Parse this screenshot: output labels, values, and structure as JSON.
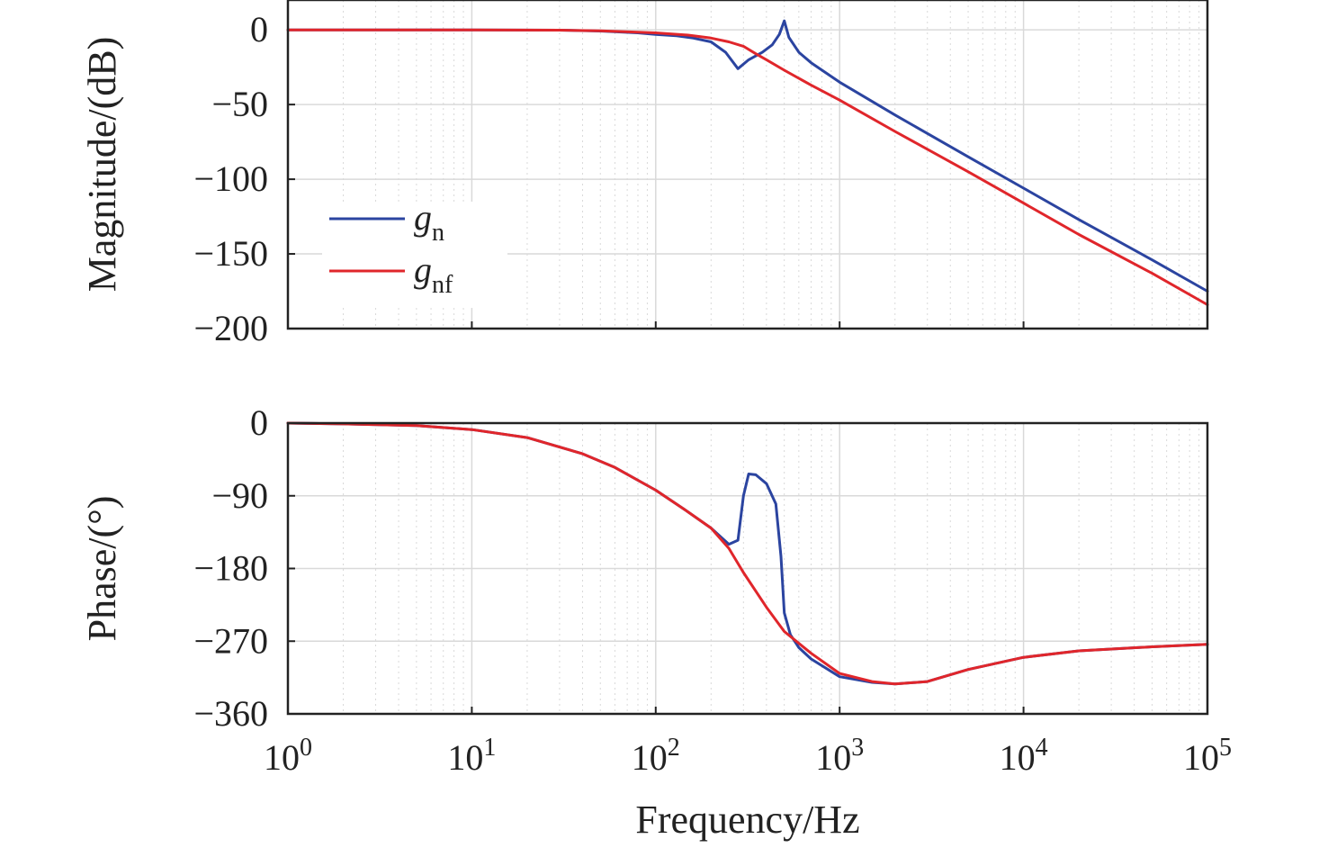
{
  "colors": {
    "gn": "#2b44a0",
    "gnf": "#e0262b",
    "grid": "#d9d9d9",
    "axis": "#222222"
  },
  "chart_data": [
    {
      "type": "line",
      "xscale": "log",
      "xlim": [
        1,
        100000
      ],
      "ylim": [
        -200,
        20
      ],
      "ylabel": "Magnitude/(dB)",
      "yticks": [
        0,
        -50,
        -100,
        -150,
        -200
      ],
      "ytick_labels": [
        "0",
        "−50",
        "−100",
        "−150",
        "−200"
      ],
      "grid": true,
      "legend": {
        "placement": "left-middle",
        "entries": [
          {
            "symbol": "g",
            "subscript": "n",
            "color": "#2b44a0"
          },
          {
            "symbol": "g",
            "subscript": "nf",
            "color": "#e0262b"
          }
        ]
      },
      "series": [
        {
          "key": "gn",
          "color": "#2b44a0",
          "points": [
            [
              1,
              0
            ],
            [
              10,
              0
            ],
            [
              30,
              -0.2
            ],
            [
              50,
              -0.8
            ],
            [
              80,
              -2
            ],
            [
              100,
              -3
            ],
            [
              130,
              -4
            ],
            [
              160,
              -5.5
            ],
            [
              200,
              -8
            ],
            [
              240,
              -15
            ],
            [
              280,
              -26
            ],
            [
              320,
              -20
            ],
            [
              380,
              -15
            ],
            [
              430,
              -10
            ],
            [
              470,
              -3
            ],
            [
              500,
              6
            ],
            [
              530,
              -5
            ],
            [
              600,
              -15
            ],
            [
              700,
              -22
            ],
            [
              1000,
              -35
            ],
            [
              2000,
              -57
            ],
            [
              5000,
              -85
            ],
            [
              10000,
              -106
            ],
            [
              20000,
              -127
            ],
            [
              50000,
              -154
            ],
            [
              100000,
              -175
            ]
          ]
        },
        {
          "key": "gnf",
          "color": "#e0262b",
          "points": [
            [
              1,
              0
            ],
            [
              10,
              0
            ],
            [
              30,
              -0.2
            ],
            [
              50,
              -0.6
            ],
            [
              80,
              -1.5
            ],
            [
              100,
              -2
            ],
            [
              150,
              -3.5
            ],
            [
              200,
              -5.5
            ],
            [
              250,
              -8
            ],
            [
              300,
              -11
            ],
            [
              350,
              -16
            ],
            [
              400,
              -20
            ],
            [
              500,
              -27
            ],
            [
              700,
              -37
            ],
            [
              1000,
              -47
            ],
            [
              2000,
              -68
            ],
            [
              5000,
              -95
            ],
            [
              10000,
              -116
            ],
            [
              20000,
              -137
            ],
            [
              50000,
              -163
            ],
            [
              100000,
              -184
            ]
          ]
        }
      ]
    },
    {
      "type": "line",
      "xscale": "log",
      "xlim": [
        1,
        100000
      ],
      "ylim": [
        -360,
        0
      ],
      "xlabel": "Frequency/Hz",
      "ylabel": "Phase/(°)",
      "yticks": [
        0,
        -90,
        -180,
        -270,
        -360
      ],
      "ytick_labels": [
        "0",
        "−90",
        "−180",
        "−270",
        "−360"
      ],
      "xticks": [
        {
          "value": 1,
          "base": "10",
          "exp": "0"
        },
        {
          "value": 10,
          "base": "10",
          "exp": "1"
        },
        {
          "value": 100,
          "base": "10",
          "exp": "2"
        },
        {
          "value": 1000,
          "base": "10",
          "exp": "3"
        },
        {
          "value": 10000,
          "base": "10",
          "exp": "4"
        },
        {
          "value": 100000,
          "base": "10",
          "exp": "5"
        }
      ],
      "grid": true,
      "series": [
        {
          "key": "gn",
          "color": "#2b44a0",
          "points": [
            [
              1,
              0
            ],
            [
              2,
              -1
            ],
            [
              5,
              -3
            ],
            [
              10,
              -8
            ],
            [
              20,
              -18
            ],
            [
              40,
              -38
            ],
            [
              60,
              -55
            ],
            [
              100,
              -83
            ],
            [
              150,
              -110
            ],
            [
              200,
              -130
            ],
            [
              250,
              -150
            ],
            [
              280,
              -145
            ],
            [
              300,
              -90
            ],
            [
              320,
              -63
            ],
            [
              350,
              -64
            ],
            [
              400,
              -75
            ],
            [
              450,
              -100
            ],
            [
              480,
              -165
            ],
            [
              500,
              -235
            ],
            [
              540,
              -262
            ],
            [
              600,
              -278
            ],
            [
              700,
              -292
            ],
            [
              1000,
              -314
            ],
            [
              1500,
              -321
            ],
            [
              2000,
              -323
            ],
            [
              3000,
              -320
            ],
            [
              5000,
              -305
            ],
            [
              10000,
              -290
            ],
            [
              20000,
              -282
            ],
            [
              50000,
              -277
            ],
            [
              100000,
              -274
            ]
          ]
        },
        {
          "key": "gnf",
          "color": "#e0262b",
          "points": [
            [
              1,
              0
            ],
            [
              2,
              -1
            ],
            [
              5,
              -3
            ],
            [
              10,
              -8
            ],
            [
              20,
              -18
            ],
            [
              40,
              -38
            ],
            [
              60,
              -55
            ],
            [
              100,
              -83
            ],
            [
              150,
              -110
            ],
            [
              200,
              -130
            ],
            [
              250,
              -155
            ],
            [
              300,
              -185
            ],
            [
              400,
              -228
            ],
            [
              500,
              -258
            ],
            [
              700,
              -285
            ],
            [
              1000,
              -310
            ],
            [
              1500,
              -320
            ],
            [
              2000,
              -323
            ],
            [
              3000,
              -320
            ],
            [
              5000,
              -305
            ],
            [
              10000,
              -290
            ],
            [
              20000,
              -282
            ],
            [
              50000,
              -277
            ],
            [
              100000,
              -274
            ]
          ]
        }
      ]
    }
  ]
}
